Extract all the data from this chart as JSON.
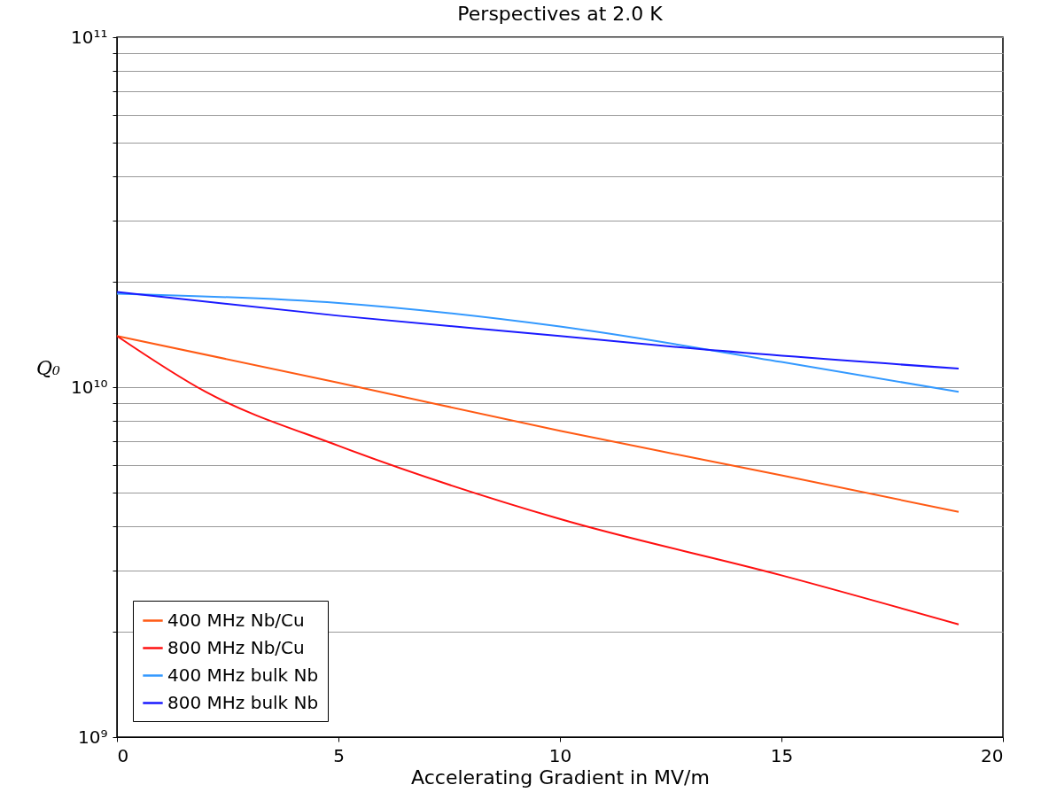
{
  "chart_data": {
    "type": "line",
    "title": "Perspectives at 2.0 K",
    "xlabel": "Accelerating Gradient in MV/m",
    "ylabel": "Q₀",
    "log": "y",
    "grid": "y",
    "legend": "bottom left",
    "xlim": [
      0,
      20
    ],
    "xticks": [
      0,
      5,
      10,
      15,
      20
    ],
    "ylim": [
      1000000000.0,
      100000000000.0
    ],
    "yticks": [
      {
        "value": 1000000000.0,
        "label": "10⁹"
      },
      {
        "value": 2000000000.0,
        "label": null
      },
      {
        "value": 3000000000.0,
        "label": null
      },
      {
        "value": 4000000000.0,
        "label": null
      },
      {
        "value": 5000000000.0,
        "label": null
      },
      {
        "value": 6000000000.0,
        "label": null
      },
      {
        "value": 7000000000.0,
        "label": null
      },
      {
        "value": 8000000000.0,
        "label": null
      },
      {
        "value": 9000000000.0,
        "label": null
      },
      {
        "value": 10000000000.0,
        "label": "10¹⁰"
      },
      {
        "value": 20000000000.0,
        "label": null
      },
      {
        "value": 30000000000.0,
        "label": null
      },
      {
        "value": 40000000000.0,
        "label": null
      },
      {
        "value": 50000000000.0,
        "label": null
      },
      {
        "value": 60000000000.0,
        "label": null
      },
      {
        "value": 70000000000.0,
        "label": null
      },
      {
        "value": 80000000000.0,
        "label": null
      },
      {
        "value": 90000000000.0,
        "label": null
      },
      {
        "value": 100000000000.0,
        "label": "10¹¹"
      }
    ],
    "series": [
      {
        "name": "400 MHz Nb/Cu",
        "color": "#ff5a14",
        "x": [
          0,
          5,
          10,
          15,
          19
        ],
        "values": [
          14000000000.0,
          10300000000.0,
          7500000000.0,
          5600000000.0,
          4400000000.0
        ]
      },
      {
        "name": "800 MHz Nb/Cu",
        "color": "#ff1010",
        "x": [
          0,
          2,
          5,
          10,
          15,
          19
        ],
        "values": [
          14000000000.0,
          9700000000.0,
          6800000000.0,
          4200000000.0,
          2900000000.0,
          2100000000.0
        ]
      },
      {
        "name": "400 MHz bulk Nb",
        "color": "#3399ff",
        "x": [
          0,
          5,
          10,
          15,
          19
        ],
        "values": [
          18500000000.0,
          17400000000.0,
          14900000000.0,
          11800000000.0,
          9700000000.0
        ]
      },
      {
        "name": "800 MHz bulk Nb",
        "color": "#1a1aff",
        "x": [
          0,
          5,
          10,
          13,
          19
        ],
        "values": [
          18700000000.0,
          16000000000.0,
          14000000000.0,
          12900000000.0,
          11300000000.0
        ]
      }
    ]
  }
}
